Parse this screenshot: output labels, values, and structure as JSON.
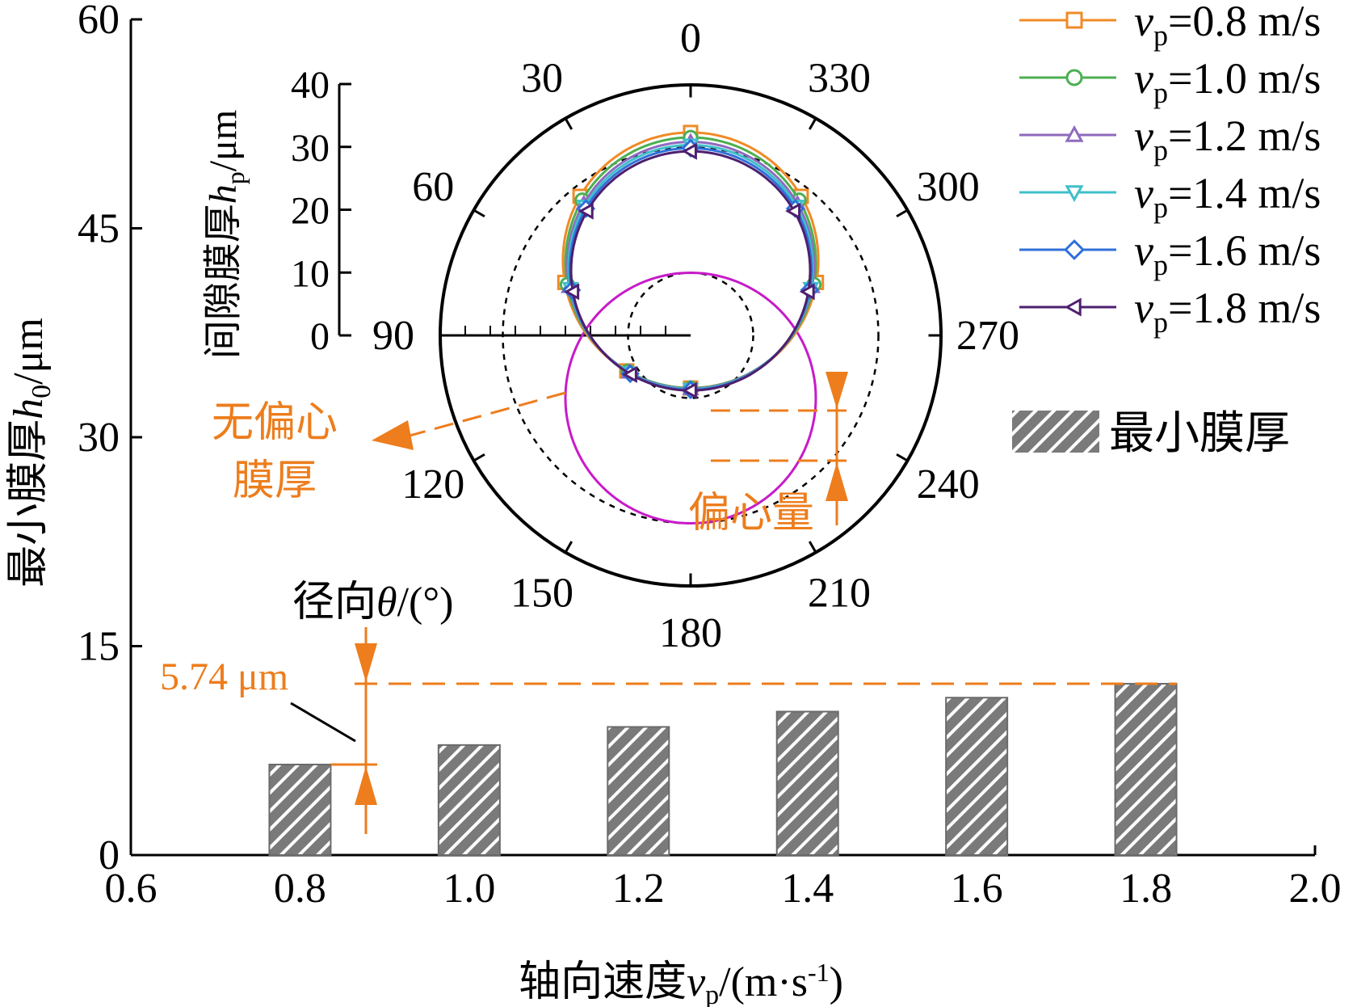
{
  "chart_data": {
    "type": "bar",
    "title": "",
    "xlabel_cn": "轴向速度",
    "xlabel_var": "v",
    "xlabel_sub": "p",
    "xlabel_unit": "/(m·s",
    "xlabel_sup": "-1",
    "xlabel_close": ")",
    "ylabel_cn": "最小膜厚",
    "ylabel_var": "h",
    "ylabel_sub": "0",
    "ylabel_unit": "/μm",
    "xlim": [
      0.6,
      2.0
    ],
    "ylim": [
      0,
      60
    ],
    "xticks": [
      "0.6",
      "0.8",
      "1.0",
      "1.2",
      "1.4",
      "1.6",
      "1.8",
      "2.0"
    ],
    "yticks": [
      "0",
      "15",
      "30",
      "45",
      "60"
    ],
    "categories": [
      0.8,
      1.0,
      1.2,
      1.4,
      1.6,
      1.8
    ],
    "values": [
      6.5,
      7.9,
      9.2,
      10.3,
      11.3,
      12.3
    ],
    "bar_legend": "最小膜厚",
    "annotation_diff": "5.74 μm",
    "annotation_diff_values": [
      6.5,
      12.3
    ],
    "inset": {
      "type": "polar",
      "r_label_cn": "间隙膜厚",
      "r_label_var": "h",
      "r_label_sub": "p",
      "r_label_unit": "/μm",
      "theta_label_cn": "径向",
      "theta_label_var": "θ",
      "theta_label_unit": "/(°)",
      "rlim": [
        0,
        40
      ],
      "rticks": [
        "0",
        "10",
        "20",
        "30",
        "40"
      ],
      "theta_ticks": [
        "0",
        "30",
        "60",
        "90",
        "120",
        "150",
        "180",
        "210",
        "240",
        "270",
        "300",
        "330"
      ],
      "reference_circles": [
        10,
        30
      ],
      "no_eccentric_circle": {
        "center_r": 10,
        "radius": 20,
        "color": "#C71BC9"
      },
      "annotation_no_ecc": [
        "无偏心",
        "膜厚"
      ],
      "annotation_ecc": "偏心量",
      "series": [
        {
          "label_var": "v",
          "label_sub": "p",
          "label_value": "=0.8 m/s",
          "color": "#F08A26",
          "marker": "square",
          "offset": 12.0,
          "radius": 20.4
        },
        {
          "label_var": "v",
          "label_sub": "p",
          "label_value": "=1.0 m/s",
          "color": "#4CAF50",
          "marker": "circle",
          "offset": 11.6,
          "radius": 20.0
        },
        {
          "label_var": "v",
          "label_sub": "p",
          "label_value": "=1.2 m/s",
          "color": "#8E6BBE",
          "marker": "triangle-up",
          "offset": 11.2,
          "radius": 19.7
        },
        {
          "label_var": "v",
          "label_sub": "p",
          "label_value": "=1.4 m/s",
          "color": "#3FBFCB",
          "marker": "triangle-down",
          "offset": 10.9,
          "radius": 19.5
        },
        {
          "label_var": "v",
          "label_sub": "p",
          "label_value": "=1.6 m/s",
          "color": "#2F6FD9",
          "marker": "diamond",
          "offset": 10.6,
          "radius": 19.3
        },
        {
          "label_var": "v",
          "label_sub": "p",
          "label_value": "=1.8 m/s",
          "color": "#4E1F6E",
          "marker": "triangle-left",
          "offset": 10.3,
          "radius": 19.1
        }
      ]
    }
  }
}
